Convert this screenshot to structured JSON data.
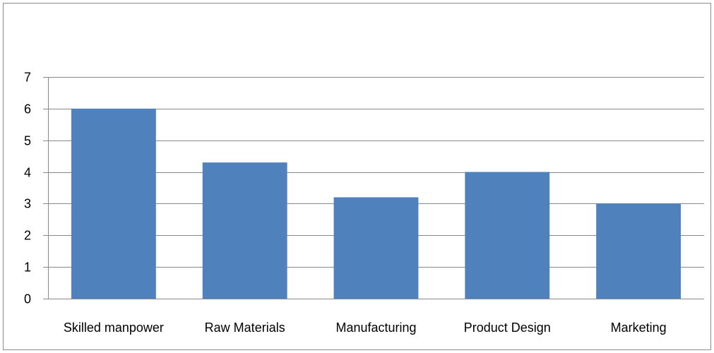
{
  "chart_data": {
    "type": "bar",
    "categories": [
      "Skilled manpower",
      "Raw Materials",
      "Manufacturing",
      "Product Design",
      "Marketing"
    ],
    "values": [
      6,
      4.3,
      3.2,
      4,
      3
    ],
    "ylim": [
      0,
      7
    ],
    "yticks": [
      0,
      1,
      2,
      3,
      4,
      5,
      6,
      7
    ],
    "grid": true,
    "legend": "none",
    "bar_color": "#4F81BD",
    "grid_color": "#888888"
  }
}
